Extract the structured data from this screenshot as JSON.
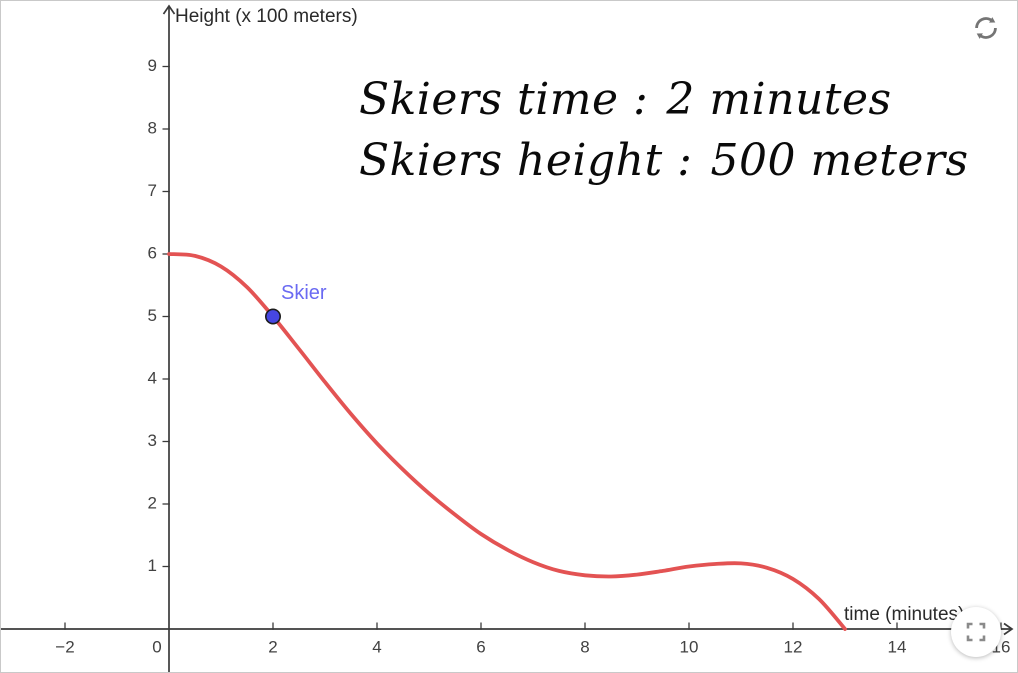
{
  "chart_data": {
    "type": "line",
    "title": "",
    "ylabel": "Height (x 100 meters)",
    "xlabel": "time (minutes)",
    "xlim": [
      -3.25,
      16.35
    ],
    "ylim": [
      -0.72,
      10.0
    ],
    "grid": false,
    "legend": false,
    "xticks": {
      "values": [
        -2,
        0,
        2,
        4,
        6,
        8,
        10,
        12,
        14,
        16
      ],
      "labels": [
        "−2",
        "0",
        "2",
        "4",
        "6",
        "8",
        "10",
        "12",
        "14",
        "16"
      ]
    },
    "yticks": {
      "values": [
        1,
        2,
        3,
        4,
        5,
        6,
        7,
        8,
        9
      ],
      "labels": [
        "1",
        "2",
        "3",
        "4",
        "5",
        "6",
        "7",
        "8",
        "9"
      ]
    },
    "series": [
      {
        "name": "skier-height-curve",
        "color": "#e35353",
        "points": [
          [
            0,
            6.0
          ],
          [
            0.5,
            5.97
          ],
          [
            1,
            5.8
          ],
          [
            1.5,
            5.47
          ],
          [
            2,
            5.0
          ],
          [
            2.5,
            4.48
          ],
          [
            3,
            3.95
          ],
          [
            3.5,
            3.44
          ],
          [
            4,
            2.97
          ],
          [
            4.5,
            2.55
          ],
          [
            5,
            2.17
          ],
          [
            5.5,
            1.83
          ],
          [
            6,
            1.52
          ],
          [
            6.5,
            1.27
          ],
          [
            7,
            1.07
          ],
          [
            7.5,
            0.93
          ],
          [
            8,
            0.86
          ],
          [
            8.5,
            0.84
          ],
          [
            9,
            0.87
          ],
          [
            9.5,
            0.93
          ],
          [
            10,
            1.0
          ],
          [
            10.5,
            1.04
          ],
          [
            11,
            1.05
          ],
          [
            11.5,
            0.98
          ],
          [
            12,
            0.8
          ],
          [
            12.5,
            0.48
          ],
          [
            13,
            0.0
          ]
        ]
      }
    ],
    "point": {
      "label": "Skier",
      "x": 2,
      "y": 5,
      "fill": "#4646e1",
      "stroke": "#1c1c1c",
      "label_color": "#6a6af2"
    },
    "captions": [
      {
        "label": "Skiers time :",
        "value": "2 minutes"
      },
      {
        "label": "Skiers height :",
        "value": "500 meters"
      }
    ],
    "axis_color": "#3b3b3b",
    "tick_label_color": "#424242"
  },
  "icons": {
    "reset": "circular-refresh-arrows",
    "fullscreen": "corner-brackets",
    "color": "#757575"
  }
}
